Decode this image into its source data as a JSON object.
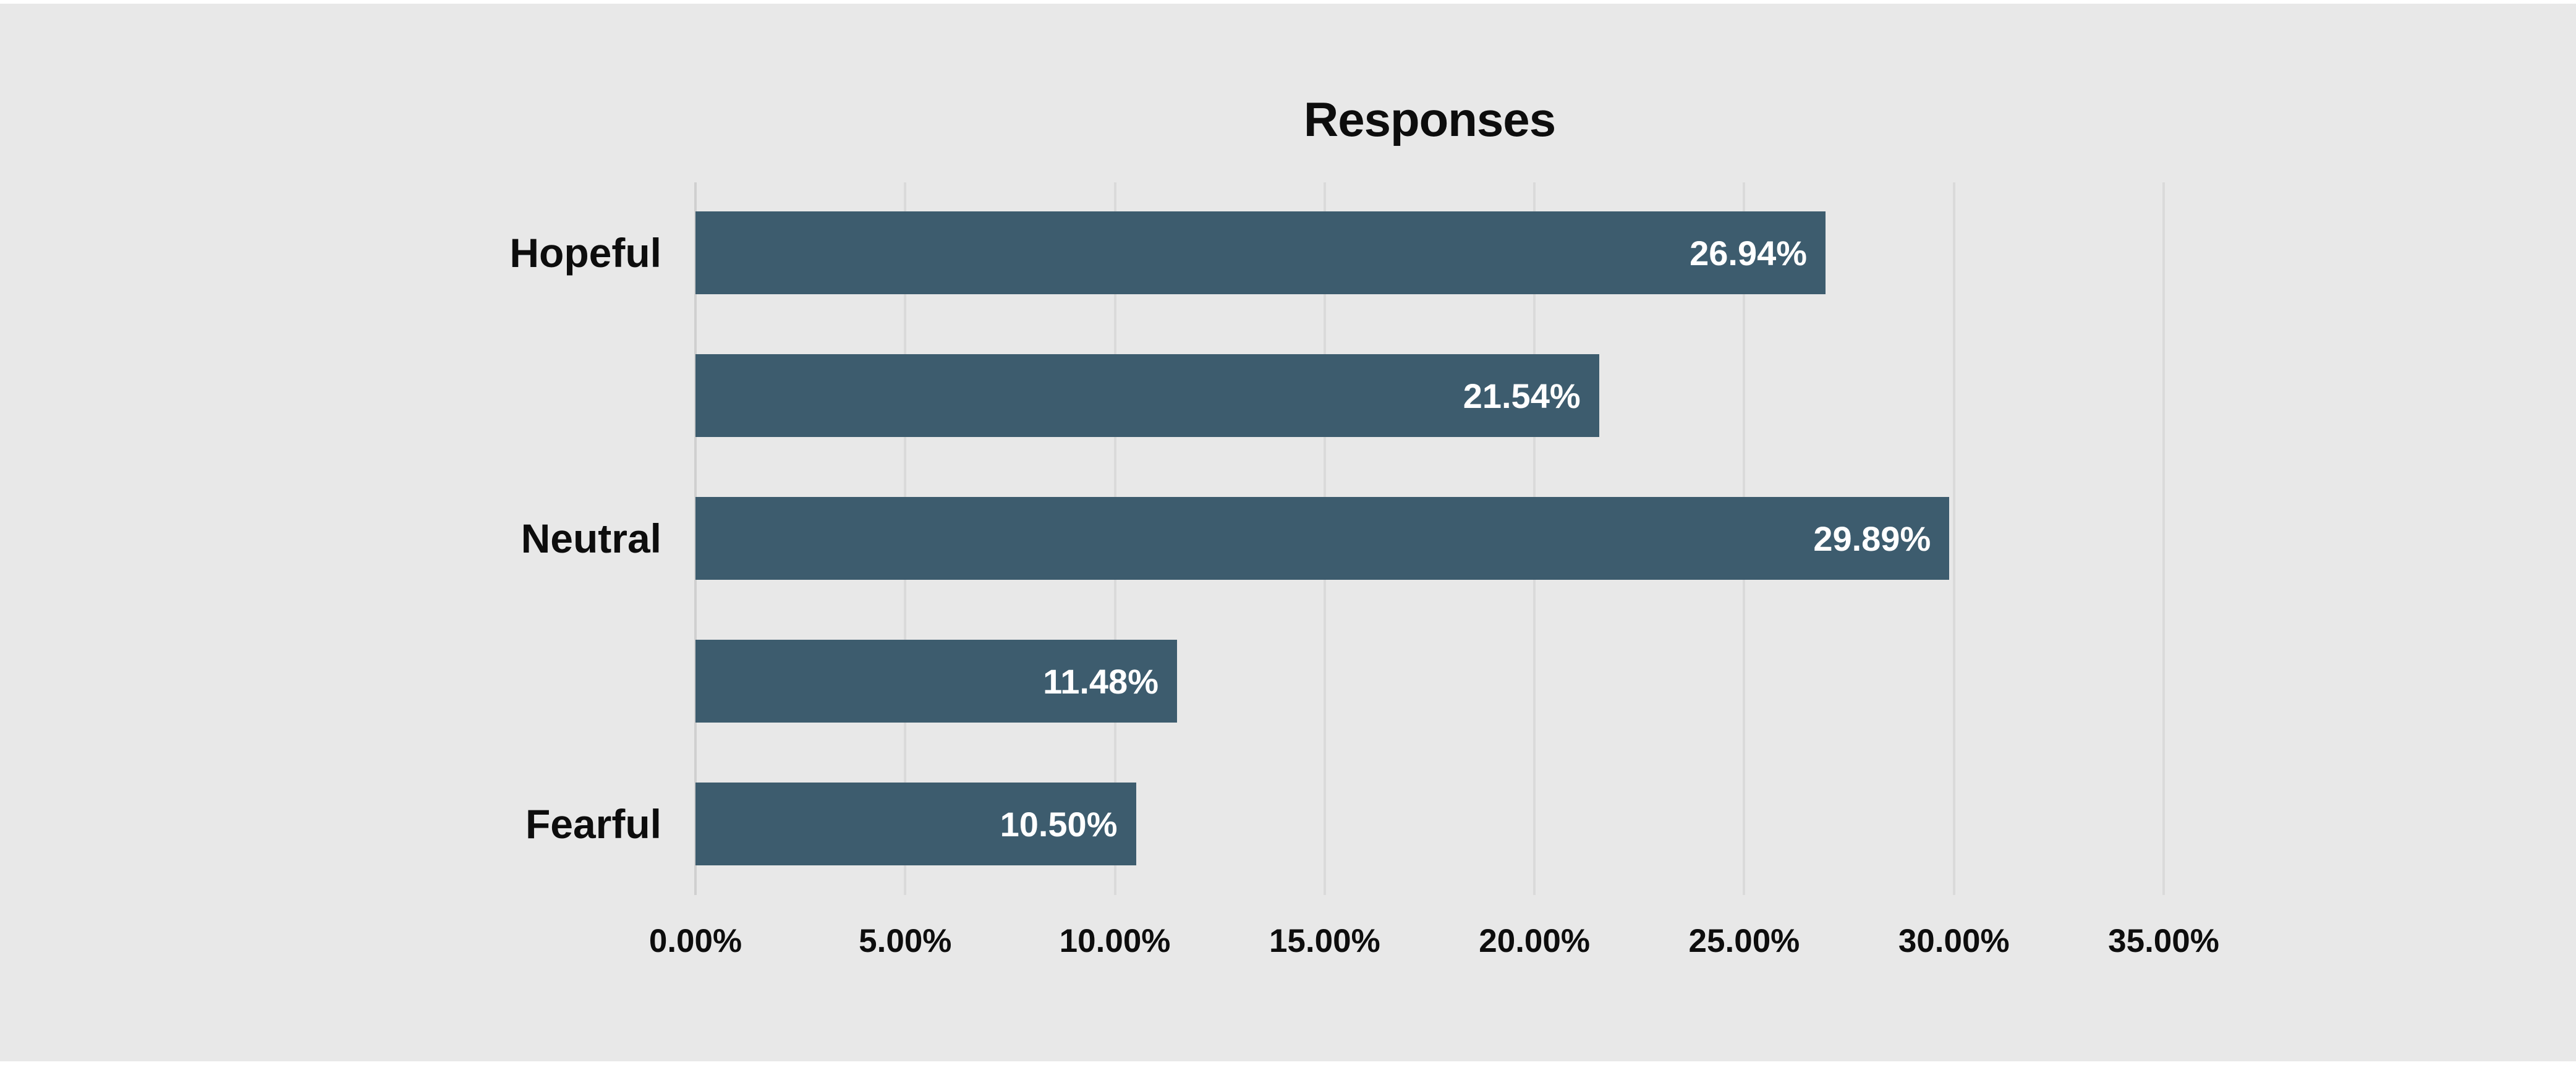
{
  "chart_data": {
    "type": "bar",
    "orientation": "horizontal",
    "title": "Responses",
    "categories": [
      "Hopeful",
      "",
      "Neutral",
      "",
      "Fearful"
    ],
    "values": [
      26.94,
      21.54,
      29.89,
      11.48,
      10.5
    ],
    "value_labels": [
      "26.94%",
      "21.54%",
      "29.89%",
      "11.48%",
      "10.50%"
    ],
    "xlim": [
      0,
      35
    ],
    "x_tick_values": [
      0,
      5,
      10,
      15,
      20,
      25,
      30,
      35
    ],
    "x_tick_labels": [
      "0.00%",
      "5.00%",
      "10.00%",
      "15.00%",
      "20.00%",
      "25.00%",
      "30.00%",
      "35.00%"
    ],
    "grid": "vertical-gridlines-on",
    "legend": "none",
    "colors": {
      "bar": "#3d5c6e",
      "background": "#e8e8e8",
      "gridline": "#dadada",
      "axis_line": "#d0d0d0",
      "title_text": "#0d0d0d",
      "category_text": "#0d0d0d",
      "value_text": "#ffffff"
    }
  }
}
